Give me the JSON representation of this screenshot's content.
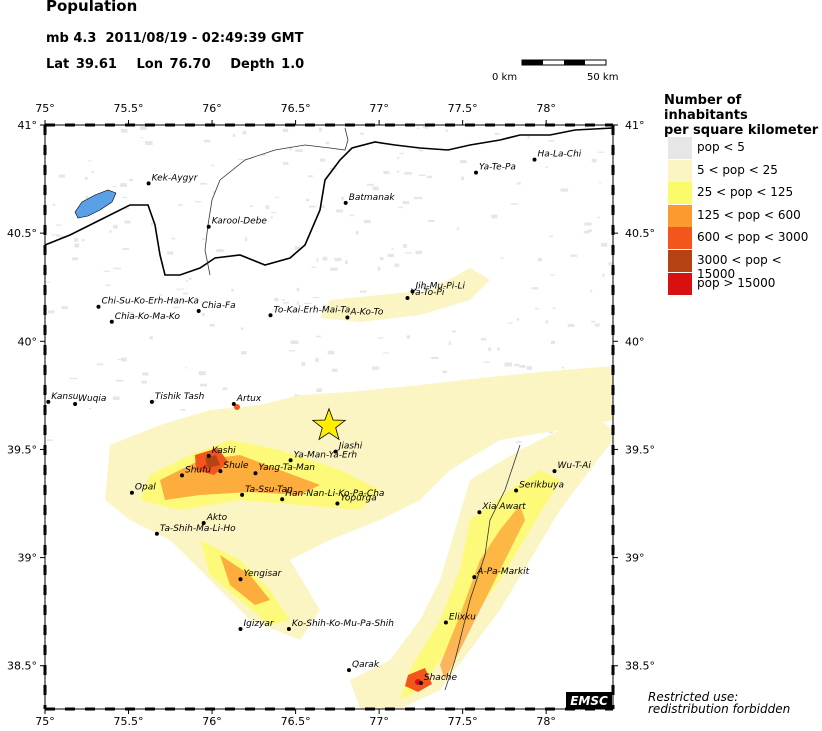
{
  "header": {
    "title": "Population",
    "magnitude": "mb 4.3",
    "datetime": "2011/08/19 - 02:49:39 GMT",
    "lat_label": "Lat",
    "lat": "39.61",
    "lon_label": "Lon",
    "lon": "76.70",
    "depth_label": "Depth",
    "depth": "1.0"
  },
  "scale_bar": {
    "start_label": "0 km",
    "end_label": "50 km"
  },
  "axes": {
    "lon_ticks": [
      "75°",
      "75.5°",
      "76°",
      "76.5°",
      "77°",
      "77.5°",
      "78°"
    ],
    "lat_ticks": [
      "41°",
      "40.5°",
      "40°",
      "39.5°",
      "39°",
      "38.5°"
    ]
  },
  "legend": {
    "title_line1": "Number of inhabitants",
    "title_line2": "per square kilometer",
    "items": [
      {
        "label": "pop < 5",
        "color": "#e6e6e6"
      },
      {
        "label": "5 < pop < 25",
        "color": "#fbf5c4"
      },
      {
        "label": "25 < pop < 125",
        "color": "#fbfa6b"
      },
      {
        "label": "125 < pop < 600",
        "color": "#fc9a2f"
      },
      {
        "label": "600 < pop < 3000",
        "color": "#f2561c"
      },
      {
        "label": "3000 < pop < 15000",
        "color": "#b64313"
      },
      {
        "label": "pop > 15000",
        "color": "#d81010"
      }
    ]
  },
  "epicenter": {
    "lon": 76.7,
    "lat": 39.61,
    "color": "#ffee00"
  },
  "cities": [
    {
      "name": "Ha-La-Chi",
      "lon": 77.93,
      "lat": 40.84
    },
    {
      "name": "Ya-Te-Pa",
      "lon": 77.58,
      "lat": 40.78
    },
    {
      "name": "Kek-Aygyr",
      "lon": 75.62,
      "lat": 40.73
    },
    {
      "name": "Batmanak",
      "lon": 76.8,
      "lat": 40.64
    },
    {
      "name": "Karool-Debe",
      "lon": 75.98,
      "lat": 40.53
    },
    {
      "name": "Jih-Mu-Pi-Li",
      "lon": 77.2,
      "lat": 40.23
    },
    {
      "name": "Ya-To-Pi",
      "lon": 77.17,
      "lat": 40.2
    },
    {
      "name": "Chi-Su-Ko-Erh-Han-Ka",
      "lon": 75.32,
      "lat": 40.16
    },
    {
      "name": "Chia-Fa",
      "lon": 75.92,
      "lat": 40.14
    },
    {
      "name": "To-Kai-Erh-Mai-Ta",
      "lon": 76.35,
      "lat": 40.12
    },
    {
      "name": "A-Ko-To",
      "lon": 76.81,
      "lat": 40.11
    },
    {
      "name": "Chia-Ko-Ma-Ko",
      "lon": 75.4,
      "lat": 40.09
    },
    {
      "name": "Kansu",
      "lon": 75.02,
      "lat": 39.72
    },
    {
      "name": "Wuqia",
      "lon": 75.18,
      "lat": 39.71
    },
    {
      "name": "Tishik Tash",
      "lon": 75.64,
      "lat": 39.72
    },
    {
      "name": "Artux",
      "lon": 76.13,
      "lat": 39.71
    },
    {
      "name": "Jiashi",
      "lon": 76.74,
      "lat": 39.49
    },
    {
      "name": "Kashi",
      "lon": 75.98,
      "lat": 39.47
    },
    {
      "name": "Ya-Man-Ya-Erh",
      "lon": 76.47,
      "lat": 39.45
    },
    {
      "name": "Shule",
      "lon": 76.05,
      "lat": 39.4
    },
    {
      "name": "Yang-Ta-Man",
      "lon": 76.26,
      "lat": 39.39
    },
    {
      "name": "Shufu",
      "lon": 75.82,
      "lat": 39.38
    },
    {
      "name": "Wu-T-Ai",
      "lon": 78.05,
      "lat": 39.4
    },
    {
      "name": "Serikbuya",
      "lon": 77.82,
      "lat": 39.31
    },
    {
      "name": "Opal",
      "lon": 75.52,
      "lat": 39.3
    },
    {
      "name": "Ta-Ssu-Tan",
      "lon": 76.18,
      "lat": 39.29
    },
    {
      "name": "Han-Nan-Li-Ko-Pa-Cha",
      "lon": 76.42,
      "lat": 39.27
    },
    {
      "name": "Yopurga",
      "lon": 76.75,
      "lat": 39.25
    },
    {
      "name": "Xia Awart",
      "lon": 77.6,
      "lat": 39.21
    },
    {
      "name": "Akto",
      "lon": 75.95,
      "lat": 39.16
    },
    {
      "name": "Ta-Shih-Ma-Li-Ho",
      "lon": 75.67,
      "lat": 39.11
    },
    {
      "name": "A-Pa-Markit",
      "lon": 77.57,
      "lat": 38.91
    },
    {
      "name": "Yengisar",
      "lon": 76.17,
      "lat": 38.9
    },
    {
      "name": "Elixku",
      "lon": 77.4,
      "lat": 38.7
    },
    {
      "name": "Igizyar",
      "lon": 76.17,
      "lat": 38.67
    },
    {
      "name": "Ko-Shih-Ko-Mu-Pa-Shih",
      "lon": 76.46,
      "lat": 38.67
    },
    {
      "name": "Qarak",
      "lon": 76.82,
      "lat": 38.48
    },
    {
      "name": "Shache",
      "lon": 77.25,
      "lat": 38.42
    }
  ],
  "lake": {
    "color": "#5aa0e6"
  },
  "logo": "EMSC",
  "footer": {
    "line1": "Restricted use:",
    "line2": "redistribution forbidden"
  }
}
